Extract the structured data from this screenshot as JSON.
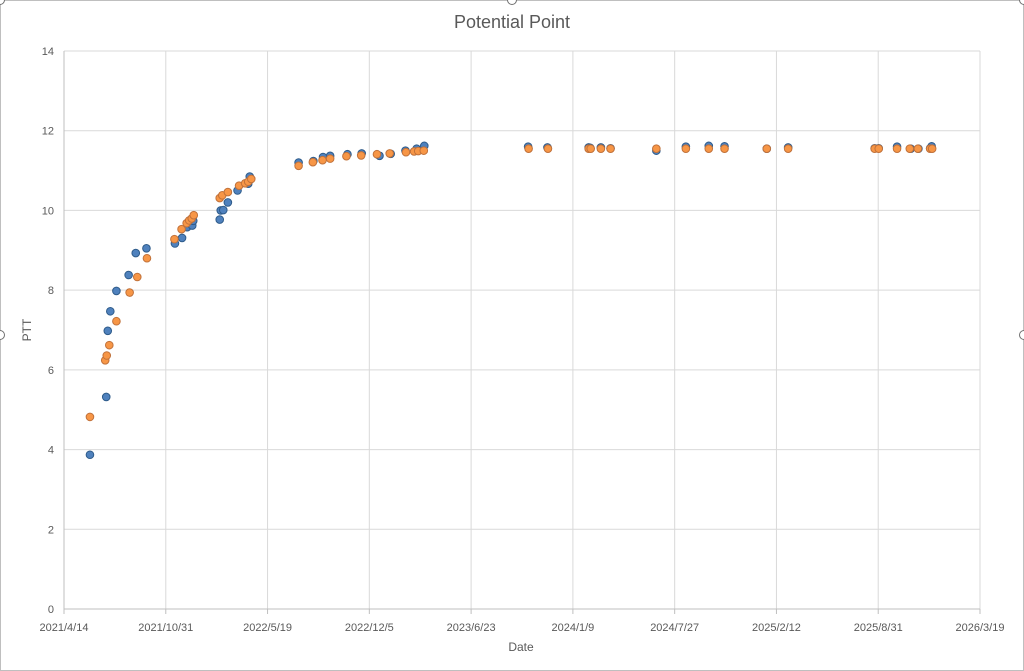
{
  "chart_data": {
    "type": "scatter",
    "title": "Potential Point",
    "xlabel": "Date",
    "ylabel": "PTT",
    "xlim": [
      "2021-04-14",
      "2026-03-19"
    ],
    "ylim": [
      0,
      14
    ],
    "y_ticks": [
      0,
      2,
      4,
      6,
      8,
      10,
      12,
      14
    ],
    "x_ticks": [
      "2021-04-14",
      "2021-10-31",
      "2022-05-19",
      "2022-12-05",
      "2023-06-23",
      "2024-01-09",
      "2024-07-27",
      "2025-02-12",
      "2025-08-31",
      "2026-03-19"
    ],
    "x_tick_labels": [
      "2021/4/14",
      "2021/10/31",
      "2022/5/19",
      "2022/12/5",
      "2023/6/23",
      "2024/1/9",
      "2024/7/27",
      "2025/2/12",
      "2025/8/31",
      "2026/3/19"
    ],
    "grid": true,
    "legend": "none",
    "series": [
      {
        "color": "#4f81bd",
        "points": [
          [
            "2021-06-04",
            3.87
          ],
          [
            "2021-07-06",
            5.32
          ],
          [
            "2021-07-09",
            6.98
          ],
          [
            "2021-07-14",
            7.47
          ],
          [
            "2021-07-26",
            7.98
          ],
          [
            "2021-08-19",
            8.38
          ],
          [
            "2021-09-02",
            8.93
          ],
          [
            "2021-09-23",
            9.05
          ],
          [
            "2021-11-18",
            9.17
          ],
          [
            "2021-12-02",
            9.31
          ],
          [
            "2021-12-12",
            9.58
          ],
          [
            "2021-12-18",
            9.68
          ],
          [
            "2021-12-22",
            9.62
          ],
          [
            "2021-12-24",
            9.74
          ],
          [
            "2022-02-14",
            9.77
          ],
          [
            "2022-02-16",
            10.0
          ],
          [
            "2022-02-21",
            10.01
          ],
          [
            "2022-03-02",
            10.2
          ],
          [
            "2022-03-21",
            10.5
          ],
          [
            "2022-04-11",
            10.67
          ],
          [
            "2022-04-14",
            10.85
          ],
          [
            "2022-07-19",
            11.2
          ],
          [
            "2022-08-17",
            11.24
          ],
          [
            "2022-09-05",
            11.34
          ],
          [
            "2022-09-19",
            11.37
          ],
          [
            "2022-10-23",
            11.41
          ],
          [
            "2022-11-20",
            11.43
          ],
          [
            "2022-12-25",
            11.37
          ],
          [
            "2023-01-16",
            11.42
          ],
          [
            "2023-02-14",
            11.5
          ],
          [
            "2023-03-08",
            11.55
          ],
          [
            "2023-03-23",
            11.62
          ],
          [
            "2023-10-13",
            11.6
          ],
          [
            "2023-11-20",
            11.58
          ],
          [
            "2024-02-09",
            11.58
          ],
          [
            "2024-02-12",
            11.57
          ],
          [
            "2024-03-04",
            11.58
          ],
          [
            "2024-03-23",
            11.56
          ],
          [
            "2024-06-21",
            11.5
          ],
          [
            "2024-08-18",
            11.6
          ],
          [
            "2024-10-02",
            11.62
          ],
          [
            "2024-11-02",
            11.61
          ],
          [
            "2025-01-24",
            11.55
          ],
          [
            "2025-03-07",
            11.58
          ],
          [
            "2025-08-24",
            11.56
          ],
          [
            "2025-09-01",
            11.56
          ],
          [
            "2025-10-07",
            11.6
          ],
          [
            "2025-11-03",
            11.55
          ],
          [
            "2025-11-18",
            11.55
          ],
          [
            "2025-12-11",
            11.56
          ],
          [
            "2025-12-14",
            11.61
          ]
        ]
      },
      {
        "color": "#f79646",
        "points": [
          [
            "2021-06-04",
            4.82
          ],
          [
            "2021-07-04",
            6.24
          ],
          [
            "2021-07-07",
            6.36
          ],
          [
            "2021-07-12",
            6.62
          ],
          [
            "2021-07-26",
            7.22
          ],
          [
            "2021-08-21",
            7.94
          ],
          [
            "2021-09-05",
            8.33
          ],
          [
            "2021-09-24",
            8.8
          ],
          [
            "2021-11-17",
            9.28
          ],
          [
            "2021-12-01",
            9.53
          ],
          [
            "2021-12-11",
            9.68
          ],
          [
            "2021-12-16",
            9.75
          ],
          [
            "2021-12-21",
            9.8
          ],
          [
            "2021-12-25",
            9.88
          ],
          [
            "2022-02-14",
            10.31
          ],
          [
            "2022-02-19",
            10.38
          ],
          [
            "2022-03-02",
            10.46
          ],
          [
            "2022-03-24",
            10.62
          ],
          [
            "2022-04-05",
            10.68
          ],
          [
            "2022-04-11",
            10.72
          ],
          [
            "2022-04-17",
            10.79
          ],
          [
            "2022-07-19",
            11.12
          ],
          [
            "2022-08-16",
            11.21
          ],
          [
            "2022-09-04",
            11.26
          ],
          [
            "2022-09-19",
            11.3
          ],
          [
            "2022-10-21",
            11.36
          ],
          [
            "2022-11-19",
            11.38
          ],
          [
            "2022-12-20",
            11.41
          ],
          [
            "2023-01-14",
            11.43
          ],
          [
            "2023-02-15",
            11.46
          ],
          [
            "2023-03-03",
            11.48
          ],
          [
            "2023-03-11",
            11.49
          ],
          [
            "2023-03-22",
            11.5
          ],
          [
            "2023-10-14",
            11.55
          ],
          [
            "2023-11-21",
            11.55
          ],
          [
            "2024-02-09",
            11.55
          ],
          [
            "2024-02-13",
            11.55
          ],
          [
            "2024-03-04",
            11.55
          ],
          [
            "2024-03-23",
            11.55
          ],
          [
            "2024-06-21",
            11.55
          ],
          [
            "2024-08-18",
            11.55
          ],
          [
            "2024-10-02",
            11.55
          ],
          [
            "2024-11-02",
            11.55
          ],
          [
            "2025-01-24",
            11.55
          ],
          [
            "2025-03-07",
            11.55
          ],
          [
            "2025-08-24",
            11.55
          ],
          [
            "2025-09-01",
            11.55
          ],
          [
            "2025-10-07",
            11.55
          ],
          [
            "2025-11-01",
            11.55
          ],
          [
            "2025-11-17",
            11.55
          ],
          [
            "2025-12-11",
            11.55
          ],
          [
            "2025-12-15",
            11.55
          ]
        ]
      }
    ]
  }
}
